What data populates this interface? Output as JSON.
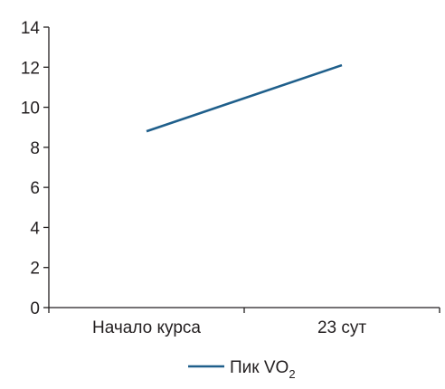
{
  "chart_data": {
    "type": "line",
    "categories": [
      "Начало курса",
      "23 сут"
    ],
    "series": [
      {
        "name": "Пик VO2",
        "values": [
          8.8,
          12.1
        ],
        "color": "#1f5f8b"
      }
    ],
    "ylim": [
      0,
      14
    ],
    "yticks": [
      0,
      2,
      4,
      6,
      8,
      10,
      12,
      14
    ],
    "grid": false,
    "legend": {
      "placement": "bottom-center",
      "label_main": "Пик VO",
      "label_sub": "2"
    },
    "axis_color": "#231f20"
  }
}
